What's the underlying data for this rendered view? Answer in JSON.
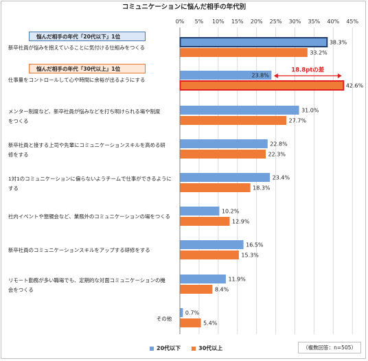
{
  "title": "コミュニケーションに悩んだ相手の年代別",
  "badges": {
    "blue": "悩んだ相手の年代「20代以下」1位",
    "orange": "悩んだ相手の年代「30代以上」1位"
  },
  "annotation": "18.8ptの差",
  "note": "（複数回答：n=505）",
  "colors": {
    "series1": "#6fa0dc",
    "series2": "#f07b36",
    "highlight_blue": "#1f3d6b",
    "highlight_red": "#e02020"
  },
  "chart_data": {
    "type": "bar",
    "orientation": "horizontal",
    "xlim": [
      0,
      45
    ],
    "ticks": [
      "0%",
      "5%",
      "10%",
      "15%",
      "20%",
      "25%",
      "30%",
      "35%",
      "40%",
      "45%"
    ],
    "categories": [
      [
        "新卒社員が悩みを抱えていることに気付ける仕組みをつくる"
      ],
      [
        "仕事量をコントロールして心や時間に余裕が出るようにする"
      ],
      [
        "メンター制度など、新卒社員が悩みなどを打ち明けられる場や制度",
        "をつくる"
      ],
      [
        "新卒社員と接する上司や先輩にコミュニケーションスキルを高める研",
        "修をする"
      ],
      [
        "1対1のコミュニケーションに偏らないようチームで仕事ができるように",
        "する"
      ],
      [
        "社内イベントや懇親会など、業務外のコミュニケーションの場をつくる"
      ],
      [
        "新卒社員のコミュニケーションスキルをアップする研修をする"
      ],
      [
        "リモート勤務が多い職場でも、定期的な対面コミュニケーションの機",
        "会をつくる"
      ],
      [
        "その他"
      ]
    ],
    "series": [
      {
        "name": "20代以下",
        "values": [
          38.3,
          23.8,
          31.0,
          22.8,
          23.4,
          10.2,
          16.5,
          11.9,
          0.7
        ],
        "labels": [
          "38.3%",
          "23.8%",
          "31.0%",
          "22.8%",
          "23.4%",
          "10.2%",
          "16.5%",
          "11.9%",
          "0.7%"
        ]
      },
      {
        "name": "30代以上",
        "values": [
          33.2,
          42.6,
          27.7,
          22.3,
          18.3,
          12.9,
          15.3,
          8.4,
          5.4
        ],
        "labels": [
          "33.2%",
          "42.6%",
          "27.7%",
          "22.3%",
          "18.3%",
          "12.9%",
          "15.3%",
          "8.4%",
          "5.4%"
        ]
      }
    ],
    "highlights": [
      {
        "category": 0,
        "series": 0
      },
      {
        "category": 1,
        "series": 1
      }
    ]
  }
}
